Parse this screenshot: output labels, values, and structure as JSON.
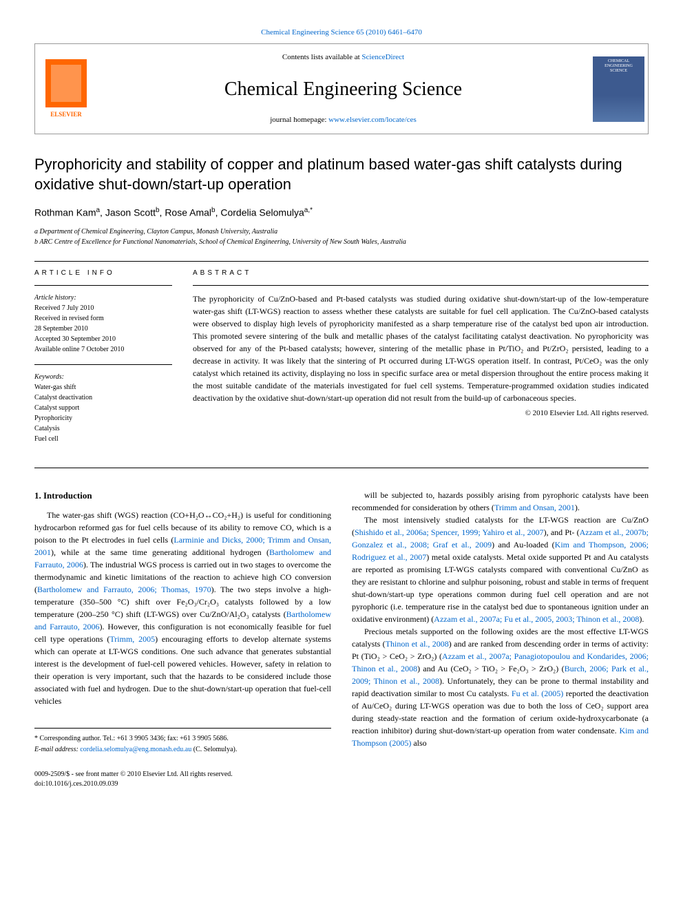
{
  "top_link": {
    "prefix": "",
    "text": "Chemical Engineering Science 65 (2010) 6461–6470"
  },
  "header": {
    "contents_label": "Contents lists available at",
    "contents_link": "ScienceDirect",
    "journal_name": "Chemical Engineering Science",
    "homepage_label": "journal homepage:",
    "homepage_url": "www.elsevier.com/locate/ces",
    "publisher": "ELSEVIER",
    "cover_title": "CHEMICAL ENGINEERING SCIENCE"
  },
  "article": {
    "title": "Pyrophoricity and stability of copper and platinum based water-gas shift catalysts during oxidative shut-down/start-up operation",
    "authors_html": "Rothman Kam<sup>a</sup>, Jason Scott<sup>b</sup>, Rose Amal<sup>b</sup>, Cordelia Selomulya<sup>a,*</sup>",
    "affiliations": [
      "a Department of Chemical Engineering, Clayton Campus, Monash University, Australia",
      "b ARC Centre of Excellence for Functional Nanomaterials, School of Chemical Engineering, University of New South Wales, Australia"
    ]
  },
  "article_info": {
    "heading": "ARTICLE INFO",
    "history_label": "Article history:",
    "history": [
      "Received 7 July 2010",
      "Received in revised form",
      "28 September 2010",
      "Accepted 30 September 2010",
      "Available online 7 October 2010"
    ],
    "keywords_label": "Keywords:",
    "keywords": [
      "Water-gas shift",
      "Catalyst deactivation",
      "Catalyst support",
      "Pyrophoricity",
      "Catalysis",
      "Fuel cell"
    ]
  },
  "abstract": {
    "heading": "ABSTRACT",
    "text": "The pyrophoricity of Cu/ZnO-based and Pt-based catalysts was studied during oxidative shut-down/start-up of the low-temperature water-gas shift (LT-WGS) reaction to assess whether these catalysts are suitable for fuel cell application. The Cu/ZnO-based catalysts were observed to display high levels of pyrophoricity manifested as a sharp temperature rise of the catalyst bed upon air introduction. This promoted severe sintering of the bulk and metallic phases of the catalyst facilitating catalyst deactivation. No pyrophoricity was observed for any of the Pt-based catalysts; however, sintering of the metallic phase in Pt/TiO₂ and Pt/ZrO₂ persisted, leading to a decrease in activity. It was likely that the sintering of Pt occurred during LT-WGS operation itself. In contrast, Pt/CeO₂ was the only catalyst which retained its activity, displaying no loss in specific surface area or metal dispersion throughout the entire process making it the most suitable candidate of the materials investigated for fuel cell systems. Temperature-programmed oxidation studies indicated deactivation by the oxidative shut-down/start-up operation did not result from the build-up of carbonaceous species.",
    "copyright": "© 2010 Elsevier Ltd. All rights reserved."
  },
  "body": {
    "section_heading": "1. Introduction",
    "left_paragraphs": [
      "The water-gas shift (WGS) reaction (CO+H₂O↔CO₂+H₂) is useful for conditioning hydrocarbon reformed gas for fuel cells because of its ability to remove CO, which is a poison to the Pt electrodes in fuel cells (<a>Larminie and Dicks, 2000; Trimm and Onsan, 2001</a>), while at the same time generating additional hydrogen (<a>Bartholomew and Farrauto, 2006</a>). The industrial WGS process is carried out in two stages to overcome the thermodynamic and kinetic limitations of the reaction to achieve high CO conversion (<a>Bartholomew and Farrauto, 2006; Thomas, 1970</a>). The two steps involve a high-temperature (350–500 °C) shift over Fe₂O₃/Cr₂O₃ catalysts followed by a low temperature (200–250 °C) shift (LT-WGS) over Cu/ZnO/Al₂O₃ catalysts (<a>Bartholomew and Farrauto, 2006</a>). However, this configuration is not economically feasible for fuel cell type operations (<a>Trimm, 2005</a>) encouraging efforts to develop alternate systems which can operate at LT-WGS conditions. One such advance that generates substantial interest is the development of fuel-cell powered vehicles. However, safety in relation to their operation is very important, such that the hazards to be considered include those associated with fuel and hydrogen. Due to the shut-down/start-up operation that fuel-cell vehicles"
    ],
    "right_paragraphs": [
      "will be subjected to, hazards possibly arising from pyrophoric catalysts have been recommended for consideration by others (<a>Trimm and Onsan, 2001</a>).",
      "The most intensively studied catalysts for the LT-WGS reaction are Cu/ZnO (<a>Shishido et al., 2006a; Spencer, 1999; Yahiro et al., 2007</a>), and Pt- (<a>Azzam et al., 2007b; Gonzalez et al., 2008; Graf et al., 2009</a>) and Au-loaded (<a>Kim and Thompson, 2006; Rodriguez et al., 2007</a>) metal oxide catalysts. Metal oxide supported Pt and Au catalysts are reported as promising LT-WGS catalysts compared with conventional Cu/ZnO as they are resistant to chlorine and sulphur poisoning, robust and stable in terms of frequent shut-down/start-up type operations common during fuel cell operation and are not pyrophoric (i.e. temperature rise in the catalyst bed due to spontaneous ignition under an oxidative environment) (<a>Azzam et al., 2007a; Fu et al., 2005, 2003; Thinon et al., 2008</a>).",
      "Precious metals supported on the following oxides are the most effective LT-WGS catalysts (<a>Thinon et al., 2008</a>) and are ranked from descending order in terms of activity: Pt (TiO₂ > CeO₂ > ZrO₂) (<a>Azzam et al., 2007a; Panagiotopoulou and Kondarides, 2006; Thinon et al., 2008</a>) and Au (CeO₂ > TiO₂ > Fe₂O₃ > ZrO₂) (<a>Burch, 2006; Park et al., 2009; Thinon et al., 2008</a>). Unfortunately, they can be prone to thermal instability and rapid deactivation similar to most Cu catalysts. <a>Fu et al. (2005)</a> reported the deactivation of Au/CeO₂ during LT-WGS operation was due to both the loss of CeO₂ support area during steady-state reaction and the formation of cerium oxide-hydroxycarbonate (a reaction inhibitor) during shut-down/start-up operation from water condensate. <a>Kim and Thompson (2005)</a> also"
    ]
  },
  "footer": {
    "corr_note": "* Corresponding author. Tel.: +61 3 9905 3436; fax: +61 3 9905 5686.",
    "email_label": "E-mail address:",
    "email": "cordelia.selomulya@eng.monash.edu.au",
    "email_suffix": "(C. Selomulya).",
    "issn": "0009-2509/$ - see front matter © 2010 Elsevier Ltd. All rights reserved.",
    "doi": "doi:10.1016/j.ces.2010.09.039"
  },
  "colors": {
    "link": "#0066cc",
    "elsevier_orange": "#ff6600",
    "cover_blue": "#3d5a8f",
    "text": "#000000",
    "border": "#999999"
  }
}
